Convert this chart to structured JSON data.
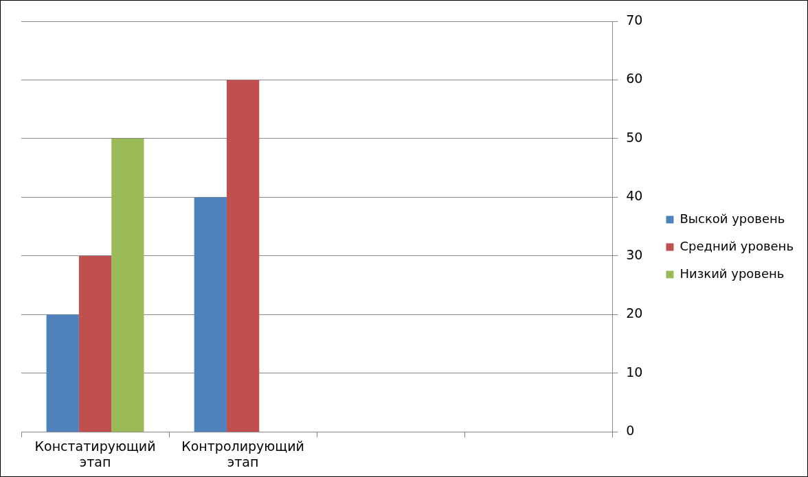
{
  "chart_data": {
    "type": "bar",
    "categories": [
      "Констатирующий этап",
      "Контролирующий этап",
      null,
      null
    ],
    "series": [
      {
        "name": "Выской уровень",
        "color": "#4f81bd",
        "values": [
          20,
          40,
          null,
          null
        ]
      },
      {
        "name": "Средний уровень",
        "color": "#c0504d",
        "values": [
          30,
          60,
          null,
          null
        ]
      },
      {
        "name": "Низкий уровень",
        "color": "#9bbb59",
        "values": [
          50,
          null,
          null,
          null
        ]
      }
    ],
    "ylim": [
      0,
      70
    ],
    "yticks": [
      0,
      10,
      20,
      30,
      40,
      50,
      60,
      70
    ],
    "grid": "y",
    "legend": "right"
  }
}
